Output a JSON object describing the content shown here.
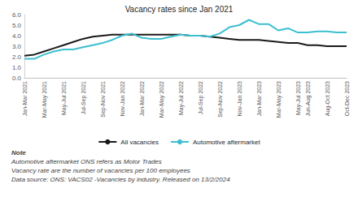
{
  "chart_data": {
    "type": "line",
    "title": "Vacancy rates since Jan 2021",
    "categories": [
      "Jan-Mar 2021",
      null,
      "Mar-May 2021",
      null,
      "May-Jul 2021",
      null,
      "Jul-Sep 2021",
      null,
      "Sep-Nov 2021",
      null,
      "Nov-Jan 2022",
      null,
      "Jan-Mar 2022",
      null,
      "Mar-May 2022",
      null,
      "May-Jul 2022",
      null,
      "Jul-Sep 2022",
      null,
      "Sep-Nov 2022",
      null,
      "Nov-Jan 2023",
      null,
      "Jan-Mar 2023",
      null,
      "Mar-May 2023",
      null,
      "May-Jul 2023",
      "Jun-Aug 2023",
      null,
      "Aug-Oct 2023",
      null,
      "Oct-Dec 2023"
    ],
    "series": [
      {
        "name": "All vacancies",
        "color": "#1a1a1a",
        "values": [
          2.1,
          2.2,
          2.5,
          2.8,
          3.1,
          3.4,
          3.7,
          3.9,
          4.0,
          4.1,
          4.1,
          4.1,
          4.1,
          4.1,
          4.1,
          4.1,
          4.1,
          4.0,
          4.0,
          3.9,
          3.8,
          3.7,
          3.6,
          3.6,
          3.6,
          3.5,
          3.4,
          3.3,
          3.3,
          3.1,
          3.1,
          3.0,
          3.0,
          3.0
        ]
      },
      {
        "name": "Automotive aftermarket",
        "color": "#3cbfcf",
        "values": [
          1.8,
          1.8,
          2.2,
          2.5,
          2.7,
          2.7,
          2.9,
          3.1,
          3.3,
          3.6,
          4.0,
          4.2,
          3.8,
          3.7,
          3.7,
          3.9,
          4.1,
          4.0,
          4.0,
          3.9,
          4.2,
          4.8,
          5.0,
          5.5,
          5.1,
          5.1,
          4.5,
          4.7,
          4.3,
          4.3,
          4.4,
          4.4,
          4.3,
          4.3
        ]
      }
    ],
    "ylim": [
      0,
      6
    ],
    "yticks": [
      {
        "value": 0,
        "label": "0.0"
      },
      {
        "value": 1,
        "label": "1.0"
      },
      {
        "value": 2,
        "label": "2.0"
      },
      {
        "value": 3,
        "label": "3.0"
      },
      {
        "value": 4,
        "label": "4.0"
      },
      {
        "value": 5,
        "label": "5.0"
      },
      {
        "value": 6,
        "label": "6.0"
      }
    ],
    "grid": false,
    "legend": "bottom",
    "annotations": [
      "Note",
      "Automotive aftermarket ONS refers as Motor Trades",
      "Vacancy rate are the number of vacancies per 100 employees",
      "Data source: ONS: VACS02 -Vacancies by industry. Released on 13/2/2024"
    ]
  }
}
